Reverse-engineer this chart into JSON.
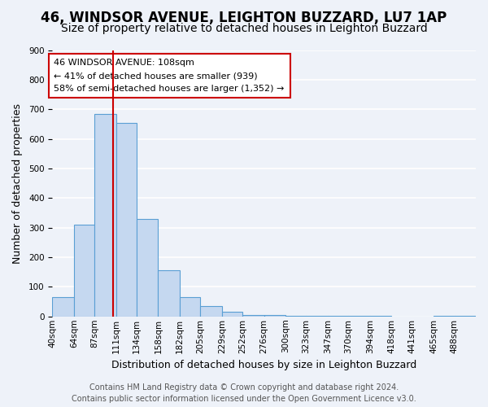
{
  "title": "46, WINDSOR AVENUE, LEIGHTON BUZZARD, LU7 1AP",
  "subtitle": "Size of property relative to detached houses in Leighton Buzzard",
  "xlabel": "Distribution of detached houses by size in Leighton Buzzard",
  "ylabel": "Number of detached properties",
  "bar_edges": [
    40,
    64,
    87,
    111,
    134,
    158,
    182,
    205,
    229,
    252,
    276,
    300,
    323,
    347,
    370,
    394,
    418,
    441,
    465,
    488,
    512
  ],
  "bar_heights": [
    65,
    310,
    685,
    655,
    330,
    155,
    65,
    35,
    15,
    5,
    5,
    3,
    2,
    1,
    1,
    1,
    0,
    0,
    3,
    1
  ],
  "bar_color": "#c5d8f0",
  "bar_edge_color": "#5a9fd4",
  "property_size": 108,
  "property_line_color": "#cc0000",
  "ylim": [
    0,
    900
  ],
  "yticks": [
    0,
    100,
    200,
    300,
    400,
    500,
    600,
    700,
    800,
    900
  ],
  "annotation_text": "46 WINDSOR AVENUE: 108sqm\n← 41% of detached houses are smaller (939)\n58% of semi-detached houses are larger (1,352) →",
  "annotation_box_color": "#ffffff",
  "annotation_box_edge": "#cc0000",
  "footer_line1": "Contains HM Land Registry data © Crown copyright and database right 2024.",
  "footer_line2": "Contains public sector information licensed under the Open Government Licence v3.0.",
  "background_color": "#eef2f9",
  "grid_color": "#ffffff",
  "title_fontsize": 12,
  "subtitle_fontsize": 10,
  "axis_label_fontsize": 9,
  "tick_fontsize": 7.5,
  "footer_fontsize": 7
}
